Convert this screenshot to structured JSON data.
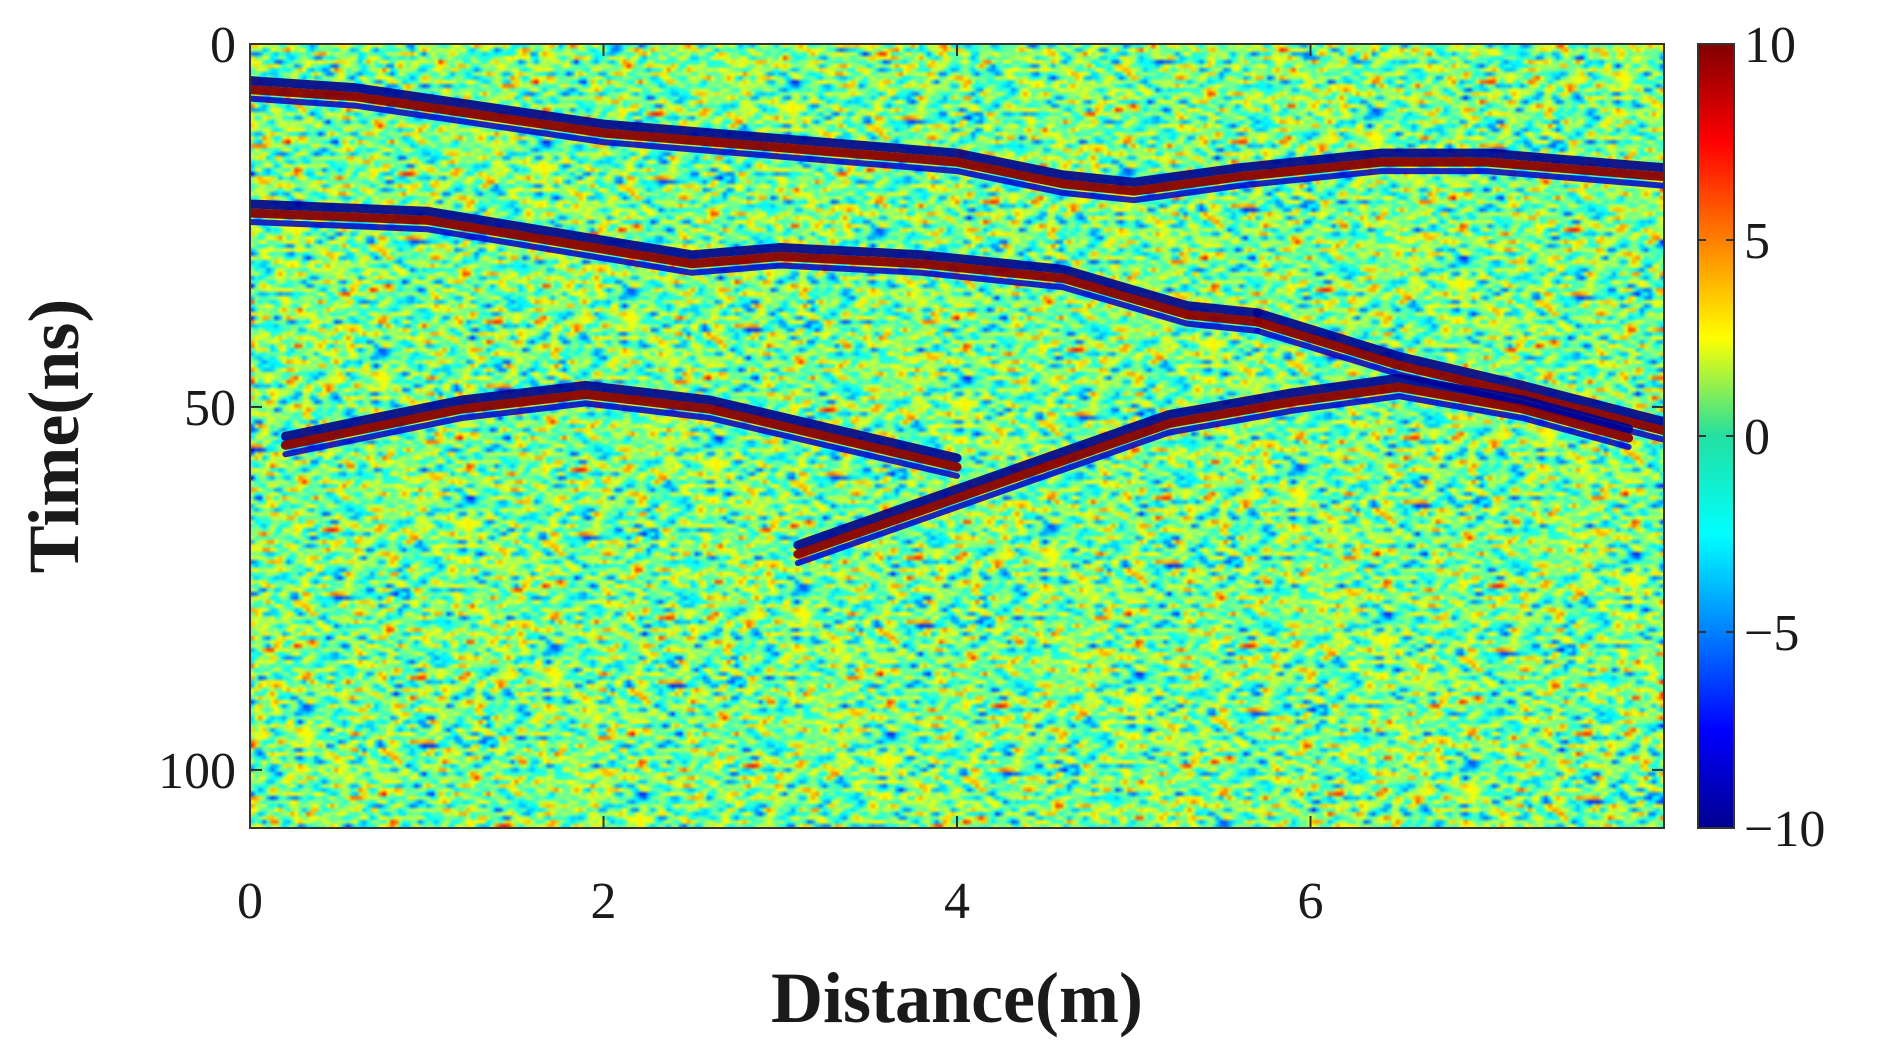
{
  "chart_data": {
    "type": "heatmap",
    "xlabel": "Distance(m)",
    "ylabel": "Time(ns)",
    "xlim": [
      0,
      8
    ],
    "ylim": [
      0,
      108
    ],
    "y_inverted": true,
    "x_ticks": [
      0,
      2,
      4,
      6
    ],
    "y_ticks": [
      0,
      50,
      100
    ],
    "colorbar": {
      "colormap": "jet",
      "range": [
        -10,
        10
      ],
      "ticks": [
        10,
        5,
        0,
        -5,
        -10
      ],
      "tick_labels": [
        "10",
        "5",
        "0",
        "−5",
        "−10"
      ]
    },
    "grid": false,
    "background": "random noise texture (values roughly −5 to 5)",
    "reflections": [
      {
        "name": "upper band",
        "points": [
          [
            0,
            6
          ],
          [
            0.6,
            7
          ],
          [
            2,
            12
          ],
          [
            3,
            14
          ],
          [
            4,
            16
          ],
          [
            4.6,
            19
          ],
          [
            5,
            20
          ],
          [
            5.6,
            18
          ],
          [
            6.4,
            16
          ],
          [
            7,
            16
          ],
          [
            8,
            18
          ]
        ]
      },
      {
        "name": "second band",
        "points": [
          [
            0,
            23
          ],
          [
            1,
            24
          ],
          [
            2,
            28
          ],
          [
            2.5,
            30
          ],
          [
            3,
            29
          ],
          [
            3.8,
            30
          ],
          [
            4.6,
            32
          ],
          [
            5.3,
            37
          ],
          [
            5.7,
            38
          ]
        ]
      },
      {
        "name": "continuation",
        "points": [
          [
            5.7,
            38
          ],
          [
            6.5,
            44
          ],
          [
            7.2,
            48
          ],
          [
            8,
            53
          ]
        ]
      },
      {
        "name": "left hyperbola",
        "points": [
          [
            0.2,
            55
          ],
          [
            0.6,
            53
          ],
          [
            1.2,
            50
          ],
          [
            1.9,
            48
          ],
          [
            2.6,
            50
          ],
          [
            3.3,
            54
          ],
          [
            4,
            58
          ]
        ]
      },
      {
        "name": "right hyperbola",
        "points": [
          [
            3.1,
            70
          ],
          [
            3.8,
            64
          ],
          [
            4.5,
            58
          ],
          [
            5.2,
            52
          ],
          [
            5.9,
            49
          ],
          [
            6.5,
            47
          ],
          [
            7.2,
            50
          ],
          [
            7.8,
            54
          ]
        ]
      }
    ]
  }
}
